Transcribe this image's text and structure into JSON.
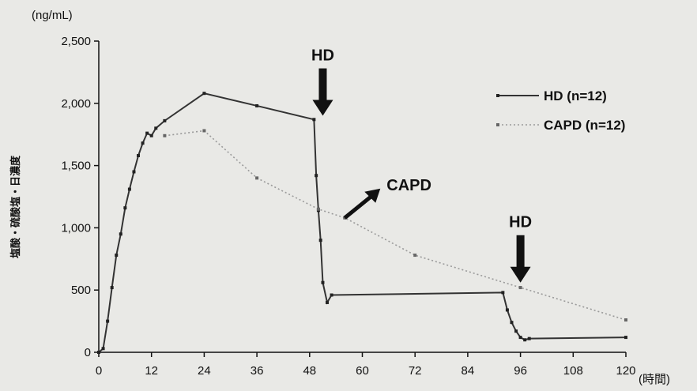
{
  "chart_data": {
    "type": "line",
    "title": "",
    "y_unit": "(ng/mL)",
    "x_unit": "(時間)",
    "ylabel": "塩酸・硫酸塩・日濃度",
    "xlim": [
      0,
      120
    ],
    "ylim": [
      0,
      2500
    ],
    "x_ticks": [
      0,
      12,
      24,
      36,
      48,
      60,
      72,
      84,
      96,
      108,
      120
    ],
    "y_ticks": [
      0,
      500,
      1000,
      1500,
      2000,
      2500
    ],
    "y_tick_labels": [
      "0",
      "500",
      "1,000",
      "1,500",
      "2,000",
      "2,500"
    ],
    "grid": false,
    "legend_position": "top-right",
    "series": [
      {
        "name": "HD (n=12)",
        "style": "solid",
        "color": "#333333",
        "x": [
          0,
          1,
          2,
          3,
          4,
          5,
          6,
          7,
          8,
          9,
          10,
          11,
          12,
          13,
          15,
          24,
          36,
          49,
          49.5,
          50,
          50.5,
          51,
          52,
          53,
          92,
          93,
          94,
          95,
          96,
          97,
          98,
          120
        ],
        "y": [
          0,
          30,
          250,
          520,
          780,
          950,
          1160,
          1310,
          1450,
          1580,
          1680,
          1760,
          1740,
          1800,
          1860,
          2080,
          1980,
          1870,
          1420,
          1140,
          900,
          560,
          400,
          460,
          480,
          340,
          240,
          170,
          120,
          100,
          110,
          120
        ]
      },
      {
        "name": "CAPD (n=12)",
        "style": "dotted",
        "color": "#9a9a9a",
        "x": [
          15,
          24,
          36,
          50,
          56,
          72,
          96,
          120
        ],
        "y": [
          1740,
          1780,
          1400,
          1150,
          1080,
          780,
          520,
          260
        ]
      }
    ],
    "annotations": [
      {
        "text": "HD",
        "arrow": "down",
        "x": 51,
        "y": 1900
      },
      {
        "text": "HD",
        "arrow": "down",
        "x": 96,
        "y": 560
      },
      {
        "text": "CAPD",
        "arrow": "up-right",
        "x": 56,
        "y": 1080
      }
    ]
  }
}
